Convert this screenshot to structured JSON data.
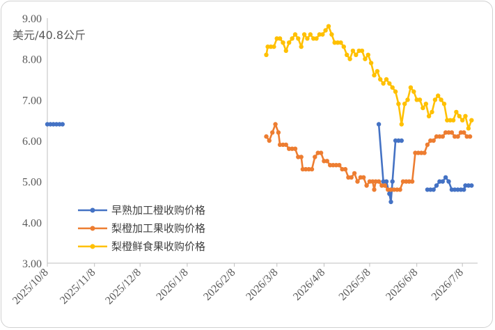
{
  "chart_data": {
    "type": "line",
    "title": "",
    "unit_label": "美元/40.8公斤",
    "ylim": [
      3.0,
      9.0
    ],
    "y_ticks": [
      "3.00",
      "4.00",
      "5.00",
      "6.00",
      "7.00",
      "8.00",
      "9.00"
    ],
    "x_ticks": [
      "2025/10/8",
      "2025/11/8",
      "2025/12/8",
      "2026/1/8",
      "2026/2/8",
      "2026/3/8",
      "2026/4/8",
      "2026/5/8",
      "2026/6/8",
      "2026/7/8"
    ],
    "legend_position": "bottom-left",
    "series": [
      {
        "name": "早熟加工橙收购价格",
        "color": "#4472C4",
        "points": [
          [
            "2025/10/8",
            6.4
          ],
          [
            "2025/10/10",
            6.4
          ],
          [
            "2025/10/12",
            6.4
          ],
          [
            "2025/10/14",
            6.4
          ],
          [
            "2025/10/16",
            6.4
          ],
          [
            "2025/10/18",
            6.4
          ],
          null,
          [
            "2026/5/14",
            6.4
          ],
          [
            "2026/5/17",
            5.0
          ],
          [
            "2026/5/19",
            5.0
          ],
          [
            "2026/5/21",
            4.7
          ],
          [
            "2026/5/22",
            4.5
          ],
          [
            "2026/5/23",
            5.0
          ],
          [
            "2026/5/25",
            6.0
          ],
          [
            "2026/5/27",
            6.0
          ],
          [
            "2026/5/29",
            6.0
          ],
          null,
          [
            "2026/6/15",
            4.8
          ],
          [
            "2026/6/17",
            4.8
          ],
          [
            "2026/6/19",
            4.8
          ],
          [
            "2026/6/21",
            4.9
          ],
          [
            "2026/6/23",
            5.0
          ],
          [
            "2026/6/25",
            5.0
          ],
          [
            "2026/6/27",
            5.1
          ],
          [
            "2026/6/29",
            5.0
          ],
          [
            "2026/7/1",
            4.8
          ],
          [
            "2026/7/3",
            4.8
          ],
          [
            "2026/7/5",
            4.8
          ],
          [
            "2026/7/7",
            4.8
          ],
          [
            "2026/7/9",
            4.8
          ],
          [
            "2026/7/10",
            4.9
          ],
          [
            "2026/7/12",
            4.9
          ],
          [
            "2026/7/14",
            4.9
          ]
        ]
      },
      {
        "name": "梨橙加工果收购价格",
        "color": "#ED7D31",
        "points": [
          [
            "2026/3/1",
            6.1
          ],
          [
            "2026/3/3",
            6.0
          ],
          [
            "2026/3/5",
            6.2
          ],
          [
            "2026/3/7",
            6.4
          ],
          [
            "2026/3/9",
            6.2
          ],
          [
            "2026/3/10",
            5.9
          ],
          [
            "2026/3/12",
            5.9
          ],
          [
            "2026/3/14",
            5.9
          ],
          [
            "2026/3/16",
            5.8
          ],
          [
            "2026/3/18",
            5.8
          ],
          [
            "2026/3/20",
            5.8
          ],
          [
            "2026/3/22",
            5.6
          ],
          [
            "2026/3/24",
            5.6
          ],
          [
            "2026/3/25",
            5.3
          ],
          [
            "2026/3/27",
            5.3
          ],
          [
            "2026/3/29",
            5.3
          ],
          [
            "2026/3/31",
            5.3
          ],
          [
            "2026/4/2",
            5.6
          ],
          [
            "2026/4/4",
            5.7
          ],
          [
            "2026/4/6",
            5.7
          ],
          [
            "2026/4/8",
            5.5
          ],
          [
            "2026/4/10",
            5.5
          ],
          [
            "2026/4/12",
            5.4
          ],
          [
            "2026/4/14",
            5.4
          ],
          [
            "2026/4/16",
            5.4
          ],
          [
            "2026/4/18",
            5.4
          ],
          [
            "2026/4/20",
            5.3
          ],
          [
            "2026/4/22",
            5.3
          ],
          [
            "2026/4/24",
            5.1
          ],
          [
            "2026/4/26",
            5.1
          ],
          [
            "2026/4/28",
            5.2
          ],
          [
            "2026/4/30",
            5.0
          ],
          [
            "2026/5/2",
            5.1
          ],
          [
            "2026/5/4",
            5.1
          ],
          [
            "2026/5/6",
            4.9
          ],
          [
            "2026/5/8",
            5.0
          ],
          [
            "2026/5/10",
            5.0
          ],
          [
            "2026/5/11",
            4.8
          ],
          [
            "2026/5/12",
            5.0
          ],
          [
            "2026/5/14",
            5.0
          ],
          [
            "2026/5/16",
            4.9
          ],
          [
            "2026/5/18",
            4.9
          ],
          [
            "2026/5/20",
            4.8
          ],
          [
            "2026/5/22",
            4.8
          ],
          [
            "2026/5/24",
            4.8
          ],
          [
            "2026/5/26",
            4.8
          ],
          [
            "2026/5/28",
            4.8
          ],
          [
            "2026/5/30",
            5.0
          ],
          [
            "2026/6/1",
            5.0
          ],
          [
            "2026/6/3",
            5.0
          ],
          [
            "2026/6/5",
            5.0
          ],
          [
            "2026/6/7",
            5.7
          ],
          [
            "2026/6/9",
            5.7
          ],
          [
            "2026/6/11",
            5.7
          ],
          [
            "2026/6/13",
            5.7
          ],
          [
            "2026/6/15",
            5.9
          ],
          [
            "2026/6/17",
            6.0
          ],
          [
            "2026/6/19",
            6.0
          ],
          [
            "2026/6/21",
            6.1
          ],
          [
            "2026/6/23",
            6.1
          ],
          [
            "2026/6/25",
            6.1
          ],
          [
            "2026/6/27",
            6.2
          ],
          [
            "2026/6/29",
            6.2
          ],
          [
            "2026/7/1",
            6.2
          ],
          [
            "2026/7/3",
            6.1
          ],
          [
            "2026/7/5",
            6.1
          ],
          [
            "2026/7/7",
            6.2
          ],
          [
            "2026/7/9",
            6.2
          ],
          [
            "2026/7/11",
            6.1
          ],
          [
            "2026/7/13",
            6.1
          ]
        ]
      },
      {
        "name": "梨橙鲜食果收购价格",
        "color": "#FFC000",
        "points": [
          [
            "2026/3/1",
            8.1
          ],
          [
            "2026/3/2",
            8.3
          ],
          [
            "2026/3/4",
            8.3
          ],
          [
            "2026/3/6",
            8.3
          ],
          [
            "2026/3/8",
            8.5
          ],
          [
            "2026/3/10",
            8.5
          ],
          [
            "2026/3/12",
            8.4
          ],
          [
            "2026/3/14",
            8.2
          ],
          [
            "2026/3/16",
            8.4
          ],
          [
            "2026/3/18",
            8.5
          ],
          [
            "2026/3/20",
            8.6
          ],
          [
            "2026/3/22",
            8.5
          ],
          [
            "2026/3/24",
            8.3
          ],
          [
            "2026/3/26",
            8.6
          ],
          [
            "2026/3/28",
            8.5
          ],
          [
            "2026/3/30",
            8.6
          ],
          [
            "2026/4/1",
            8.5
          ],
          [
            "2026/4/3",
            8.5
          ],
          [
            "2026/4/5",
            8.6
          ],
          [
            "2026/4/7",
            8.6
          ],
          [
            "2026/4/9",
            8.7
          ],
          [
            "2026/4/11",
            8.8
          ],
          [
            "2026/4/13",
            8.6
          ],
          [
            "2026/4/15",
            8.4
          ],
          [
            "2026/4/17",
            8.4
          ],
          [
            "2026/4/19",
            8.4
          ],
          [
            "2026/4/21",
            8.3
          ],
          [
            "2026/4/23",
            8.1
          ],
          [
            "2026/4/25",
            8.0
          ],
          [
            "2026/4/27",
            8.2
          ],
          [
            "2026/4/29",
            8.1
          ],
          [
            "2026/5/1",
            8.2
          ],
          [
            "2026/5/3",
            8.2
          ],
          [
            "2026/5/5",
            8.0
          ],
          [
            "2026/5/7",
            8.1
          ],
          [
            "2026/5/9",
            7.9
          ],
          [
            "2026/5/11",
            7.6
          ],
          [
            "2026/5/13",
            7.7
          ],
          [
            "2026/5/15",
            7.5
          ],
          [
            "2026/5/17",
            7.4
          ],
          [
            "2026/5/19",
            7.5
          ],
          [
            "2026/5/21",
            7.4
          ],
          [
            "2026/5/23",
            7.3
          ],
          [
            "2026/5/25",
            7.2
          ],
          [
            "2026/5/27",
            6.9
          ],
          [
            "2026/5/29",
            6.4
          ],
          [
            "2026/5/31",
            6.9
          ],
          [
            "2026/6/2",
            7.0
          ],
          [
            "2026/6/4",
            7.3
          ],
          [
            "2026/6/6",
            7.2
          ],
          [
            "2026/6/8",
            7.0
          ],
          [
            "2026/6/10",
            7.0
          ],
          [
            "2026/6/12",
            6.8
          ],
          [
            "2026/6/14",
            6.9
          ],
          [
            "2026/6/16",
            6.6
          ],
          [
            "2026/6/18",
            6.7
          ],
          [
            "2026/6/20",
            7.0
          ],
          [
            "2026/6/22",
            7.1
          ],
          [
            "2026/6/24",
            7.0
          ],
          [
            "2026/6/26",
            6.9
          ],
          [
            "2026/6/28",
            6.5
          ],
          [
            "2026/6/30",
            6.5
          ],
          [
            "2026/7/2",
            6.5
          ],
          [
            "2026/7/4",
            6.7
          ],
          [
            "2026/7/6",
            6.6
          ],
          [
            "2026/7/8",
            6.5
          ],
          [
            "2026/7/10",
            6.6
          ],
          [
            "2026/7/12",
            6.3
          ],
          [
            "2026/7/14",
            6.5
          ]
        ]
      }
    ]
  }
}
